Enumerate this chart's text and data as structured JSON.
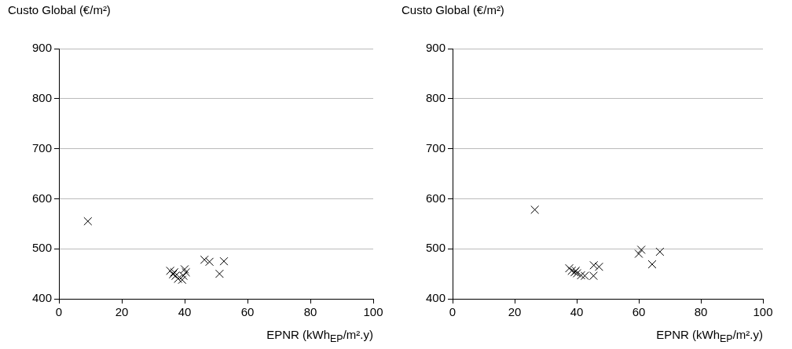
{
  "chart_data": [
    {
      "type": "scatter",
      "ylabel": "Custo Global (€/m²)",
      "xlabel": "EPNR (kWh$_{EP}$/m².y)",
      "color": "#000000",
      "marker": "cross",
      "grid": "y",
      "x": [
        9.2,
        46.3,
        47.9,
        52.5,
        51.1,
        35.4,
        36.3,
        37.1,
        37.9,
        39.2,
        40,
        40.4,
        39.6,
        36.7
      ],
      "values": [
        555,
        478,
        474,
        475,
        450,
        456,
        449,
        446,
        440,
        438,
        459,
        453,
        446,
        453
      ],
      "xlim": [
        0,
        100
      ],
      "xticks": [
        0,
        20,
        40,
        60,
        80,
        100
      ],
      "ylim": [
        400,
        900
      ],
      "yticks": [
        400,
        500,
        600,
        700,
        800,
        900
      ]
    },
    {
      "type": "scatter",
      "ylabel": "Custo Global (€/m²)",
      "xlabel": "EPNR (kWh$_{EP}$/m².y)",
      "color": "#000000",
      "marker": "cross",
      "grid": "y",
      "x": [
        26.5,
        60.8,
        60,
        66.8,
        64.3,
        37.6,
        38.4,
        39.3,
        40.1,
        41.4,
        42.6,
        45.4,
        45.5,
        47.2,
        39.7
      ],
      "values": [
        578,
        498,
        490,
        494,
        469,
        461,
        456,
        453,
        451,
        447,
        446,
        446,
        467,
        464,
        456
      ],
      "xlim": [
        0,
        100
      ],
      "xticks": [
        0,
        20,
        40,
        60,
        80,
        100
      ],
      "ylim": [
        400,
        900
      ],
      "yticks": [
        400,
        500,
        600,
        700,
        800,
        900
      ]
    }
  ]
}
